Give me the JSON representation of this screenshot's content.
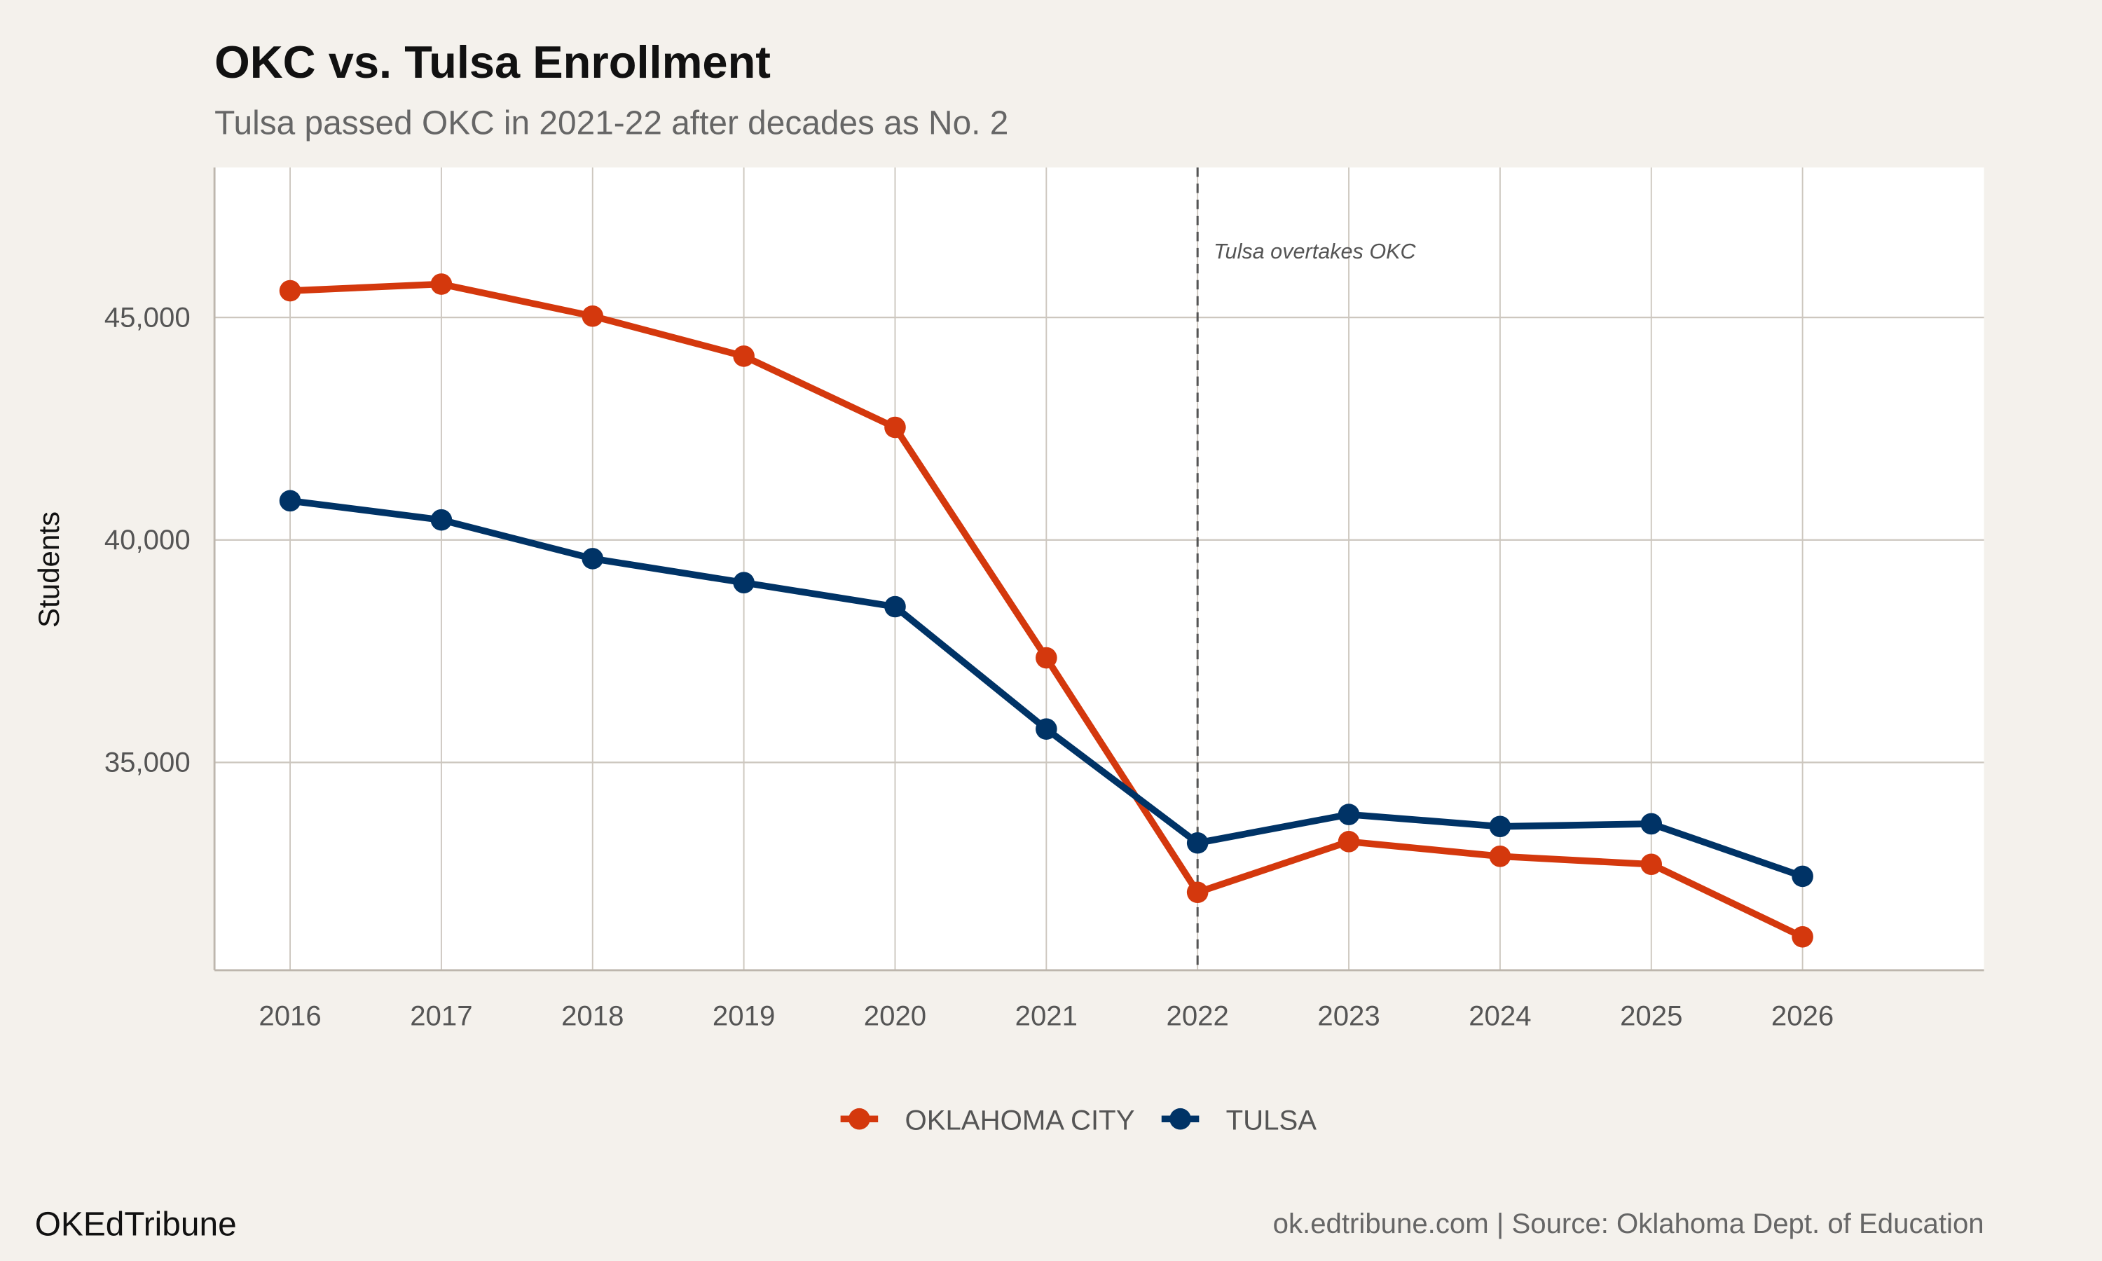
{
  "chart_data": {
    "type": "line",
    "title": "OKC vs. Tulsa Enrollment",
    "subtitle": "Tulsa passed OKC in 2021-22 after decades as No. 2",
    "xlabel": "",
    "ylabel": "Students",
    "x": [
      2016,
      2017,
      2018,
      2019,
      2020,
      2021,
      2022,
      2023,
      2024,
      2025,
      2026
    ],
    "x_tick_labels": [
      "2016",
      "2017",
      "2018",
      "2019",
      "2020",
      "2021",
      "2022",
      "2023",
      "2024",
      "2025",
      "2026"
    ],
    "y_ticks": [
      35000,
      40000,
      45000
    ],
    "y_tick_labels": [
      "35,000",
      "40,000",
      "45,000"
    ],
    "xlim": [
      2015.5,
      2027.2
    ],
    "ylim": [
      30330,
      48370
    ],
    "grid": true,
    "legend_position": "bottom",
    "series": [
      {
        "name": "OKLAHOMA CITY",
        "color": "#d4380d",
        "values": [
          45600,
          45750,
          45030,
          44130,
          42530,
          37350,
          32080,
          33220,
          32890,
          32710,
          31080
        ]
      },
      {
        "name": "TULSA",
        "color": "#003366",
        "values": [
          40880,
          40450,
          39580,
          39040,
          38500,
          35750,
          33190,
          33830,
          33560,
          33620,
          32440
        ]
      }
    ],
    "annotations": [
      {
        "x": 2022,
        "type": "vline",
        "style": "dashed",
        "text": "Tulsa overtakes OKC"
      }
    ]
  },
  "footer": {
    "brand": "OKEdTribune",
    "source": "ok.edtribune.com | Source: Oklahoma Dept. of Education"
  }
}
